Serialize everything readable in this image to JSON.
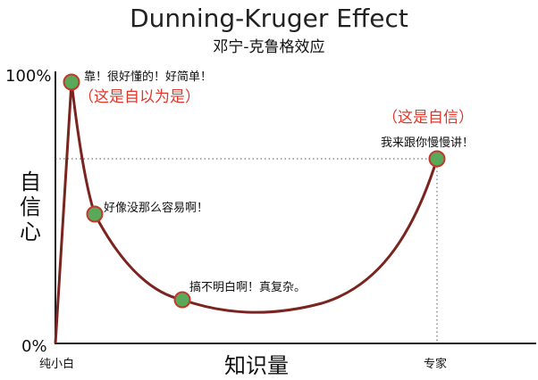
{
  "title": "Dunning-Kruger Effect",
  "subtitle": "邓宁-克鲁格效应",
  "y_axis": {
    "label": "自信心",
    "top_tick": "100%",
    "bottom_tick": "0%"
  },
  "x_axis": {
    "label": "知识量",
    "left_tick": "纯小白",
    "right_tick": "专家"
  },
  "colors": {
    "curve": "#7a2420",
    "point_fill": "#5aa85a",
    "point_stroke": "#c0392b",
    "highlight_text": "#e0382b"
  },
  "points": [
    {
      "annotation": "靠！很好懂的！好简单！",
      "highlight": "（这是自以为是）"
    },
    {
      "annotation": "好像没那么容易啊！",
      "highlight": ""
    },
    {
      "annotation": "搞不明白啊！真复杂。",
      "highlight": ""
    },
    {
      "annotation": "我来跟你慢慢讲！",
      "highlight": "（这是自信）"
    }
  ]
}
